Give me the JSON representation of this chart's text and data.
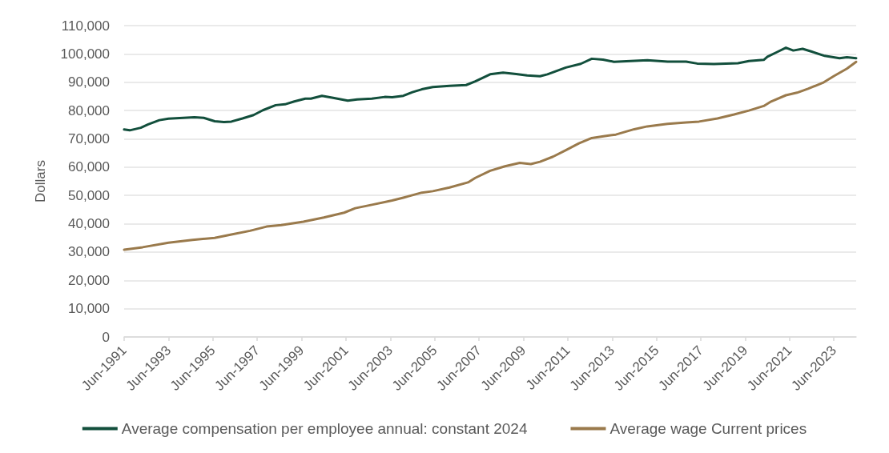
{
  "chart_data": {
    "type": "line",
    "ylabel": "Dollars",
    "xlim": [
      "1991-06",
      "2024-06"
    ],
    "xticks": [
      {
        "value": "1991-06",
        "label": "Jun-1991"
      },
      {
        "value": "1993-06",
        "label": "Jun-1993"
      },
      {
        "value": "1995-06",
        "label": "Jun-1995"
      },
      {
        "value": "1997-06",
        "label": "Jun-1997"
      },
      {
        "value": "1999-06",
        "label": "Jun-1999"
      },
      {
        "value": "2001-06",
        "label": "Jun-2001"
      },
      {
        "value": "2003-06",
        "label": "Jun-2003"
      },
      {
        "value": "2005-06",
        "label": "Jun-2005"
      },
      {
        "value": "2007-06",
        "label": "Jun-2007"
      },
      {
        "value": "2009-06",
        "label": "Jun-2009"
      },
      {
        "value": "2011-06",
        "label": "Jun-2011"
      },
      {
        "value": "2013-06",
        "label": "Jun-2013"
      },
      {
        "value": "2015-06",
        "label": "Jun-2015"
      },
      {
        "value": "2017-06",
        "label": "Jun-2017"
      },
      {
        "value": "2019-06",
        "label": "Jun-2019"
      },
      {
        "value": "2021-06",
        "label": "Jun-2021"
      },
      {
        "value": "2023-06",
        "label": "Jun-2023"
      }
    ],
    "ylim": [
      0,
      110000
    ],
    "yticks": [
      {
        "value": 0,
        "label": "0"
      },
      {
        "value": 10000,
        "label": "10,000"
      },
      {
        "value": 20000,
        "label": "20,000"
      },
      {
        "value": 30000,
        "label": "30,000"
      },
      {
        "value": 40000,
        "label": "40,000"
      },
      {
        "value": 50000,
        "label": "50,000"
      },
      {
        "value": 60000,
        "label": "60,000"
      },
      {
        "value": 70000,
        "label": "70,000"
      },
      {
        "value": 80000,
        "label": "80,000"
      },
      {
        "value": 90000,
        "label": "90,000"
      },
      {
        "value": 100000,
        "label": "100,000"
      },
      {
        "value": 110000,
        "label": "110,000"
      }
    ],
    "grid": "y",
    "legend": "bottom",
    "marker": "none",
    "line_style": "solid",
    "series": [
      {
        "name": "Average compensation per employee annual: constant 2024",
        "color": "#124f3c",
        "x": [
          "1991-06",
          "1991-09",
          "1992-03",
          "1992-07",
          "1993-01",
          "1993-06",
          "1994-02",
          "1994-08",
          "1995-01",
          "1995-07",
          "1995-12",
          "1996-04",
          "1996-10",
          "1997-04",
          "1997-09",
          "1998-04",
          "1998-09",
          "1999-02",
          "1999-08",
          "1999-11",
          "2000-05",
          "2000-11",
          "2001-07",
          "2001-12",
          "2002-08",
          "2003-03",
          "2003-07",
          "2004-01",
          "2004-06",
          "2004-11",
          "2005-05",
          "2006-02",
          "2006-11",
          "2007-04",
          "2007-12",
          "2008-07",
          "2009-02",
          "2009-08",
          "2010-03",
          "2010-07",
          "2011-05",
          "2012-01",
          "2012-07",
          "2013-01",
          "2013-07",
          "2014-04",
          "2015-01",
          "2015-12",
          "2016-10",
          "2017-04",
          "2018-01",
          "2019-02",
          "2019-08",
          "2020-04",
          "2020-06",
          "2020-11",
          "2021-04",
          "2021-08",
          "2022-01",
          "2022-06",
          "2023-01",
          "2023-09",
          "2024-01",
          "2024-06"
        ],
        "values": [
          73300,
          73000,
          73900,
          75100,
          76600,
          77100,
          77400,
          77600,
          77400,
          76200,
          75900,
          76100,
          77200,
          78400,
          80100,
          81900,
          82200,
          83200,
          84200,
          84200,
          85200,
          84500,
          83500,
          83900,
          84200,
          84800,
          84700,
          85200,
          86500,
          87500,
          88300,
          88700,
          89000,
          90300,
          92800,
          93400,
          92900,
          92400,
          92100,
          92800,
          95200,
          96500,
          98300,
          98000,
          97200,
          97500,
          97800,
          97300,
          97300,
          96600,
          96400,
          96700,
          97500,
          97900,
          99000,
          100600,
          102200,
          101200,
          101800,
          100800,
          99300,
          98500,
          98800,
          98500
        ]
      },
      {
        "name": "Average wage Current prices",
        "color": "#9a7a4c",
        "x": [
          "1991-06",
          "1992-04",
          "1993-06",
          "1994-07",
          "1995-07",
          "1996-04",
          "1997-02",
          "1997-11",
          "1998-07",
          "1999-07",
          "2000-06",
          "2001-05",
          "2001-11",
          "2002-08",
          "2003-07",
          "2004-01",
          "2004-11",
          "2005-05",
          "2006-02",
          "2006-12",
          "2007-04",
          "2007-12",
          "2008-08",
          "2009-04",
          "2009-10",
          "2010-03",
          "2010-10",
          "2011-05",
          "2011-12",
          "2012-07",
          "2013-02",
          "2013-08",
          "2014-06",
          "2015-01",
          "2015-12",
          "2016-10",
          "2017-05",
          "2018-03",
          "2018-12",
          "2019-08",
          "2020-04",
          "2020-08",
          "2021-04",
          "2021-10",
          "2022-04",
          "2022-12",
          "2023-06",
          "2024-01",
          "2024-06"
        ],
        "values": [
          30800,
          31700,
          33300,
          34300,
          35000,
          36200,
          37500,
          39000,
          39500,
          40700,
          42200,
          43900,
          45500,
          46700,
          48200,
          49200,
          51000,
          51500,
          52800,
          54600,
          56200,
          58700,
          60300,
          61500,
          61100,
          61900,
          63700,
          66000,
          68400,
          70300,
          71000,
          71500,
          73400,
          74400,
          75300,
          75800,
          76100,
          77200,
          78600,
          80000,
          81600,
          83200,
          85400,
          86300,
          87700,
          89800,
          92200,
          94800,
          97200
        ]
      }
    ]
  }
}
